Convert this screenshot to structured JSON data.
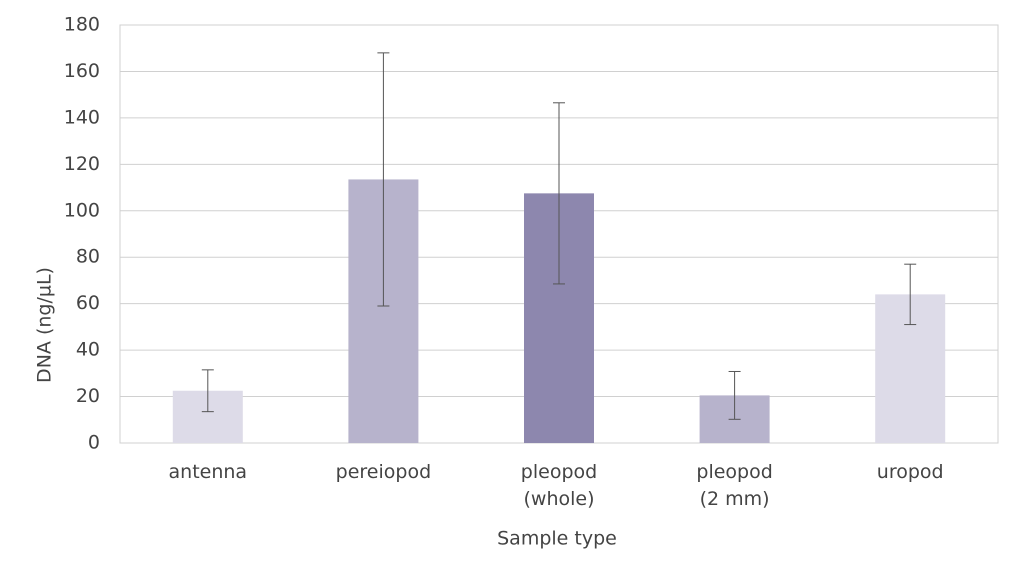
{
  "chart_data": {
    "type": "bar",
    "xlabel": "Sample type",
    "ylabel": "DNA (ng/µL)",
    "categories": [
      "antenna",
      "pereiopod",
      "pleopod\n(whole)",
      "pleopod\n(2 mm)",
      "uropod"
    ],
    "values": [
      22.5,
      113.5,
      107.5,
      20.5,
      64
    ],
    "errors": [
      9,
      54.5,
      39,
      10.3,
      13
    ],
    "colors": [
      "#dddbe8",
      "#b7b3cc",
      "#8d87ae",
      "#b7b3cc",
      "#dddbe8"
    ],
    "ylim": [
      0,
      180
    ],
    "yticks": [
      0,
      20,
      40,
      60,
      80,
      100,
      120,
      140,
      160,
      180
    ],
    "grid": true
  }
}
